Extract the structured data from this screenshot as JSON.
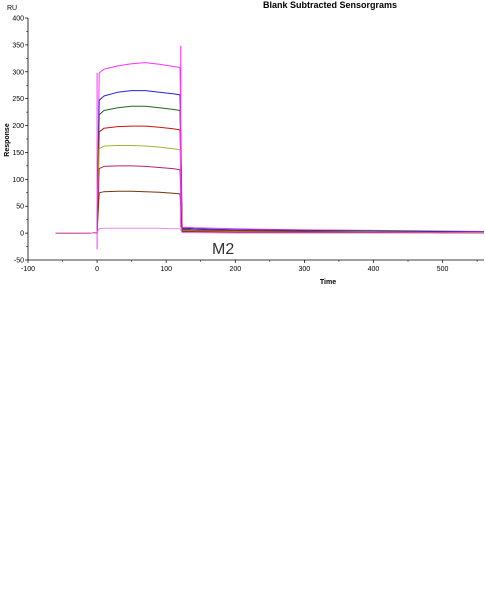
{
  "chart_data": {
    "type": "line",
    "title": "Blank Subtracted Sensorgrams",
    "xlabel": "Time",
    "ylabel": "Response",
    "unit_label": "RU",
    "annotation": "M2",
    "xlim": [
      -100,
      560
    ],
    "ylim": [
      -50,
      400
    ],
    "xticks": [
      -100,
      0,
      100,
      200,
      300,
      400,
      500
    ],
    "yticks": [
      -50,
      0,
      50,
      100,
      150,
      200,
      250,
      300,
      350,
      400
    ],
    "grid": false,
    "x": [
      -60,
      -10,
      0,
      3,
      10,
      30,
      50,
      70,
      90,
      110,
      120,
      123,
      128,
      140,
      200,
      300,
      400,
      500,
      560
    ],
    "series": [
      {
        "color": "#ff33ff",
        "values": [
          0,
          0,
          1,
          298,
          305,
          311,
          315,
          317,
          314,
          310,
          308,
          10,
          11,
          10,
          8,
          6,
          5,
          4,
          3
        ]
      },
      {
        "color": "#2222dd",
        "values": [
          0,
          0,
          1,
          247,
          255,
          262,
          265,
          265,
          262,
          259,
          257,
          8,
          9,
          8,
          6,
          5,
          4,
          3,
          2
        ]
      },
      {
        "color": "#226622",
        "values": [
          0,
          0,
          1,
          220,
          228,
          233,
          236,
          236,
          233,
          230,
          228,
          6,
          7,
          6,
          5,
          4,
          3,
          2,
          1
        ]
      },
      {
        "color": "#cc1111",
        "values": [
          0,
          0,
          1,
          188,
          195,
          198,
          199,
          199,
          197,
          194,
          192,
          5,
          6,
          5,
          4,
          3,
          2,
          1,
          1
        ]
      },
      {
        "color": "#99bb33",
        "values": [
          0,
          0,
          1,
          157,
          162,
          163,
          163,
          162,
          160,
          157,
          155,
          4,
          5,
          4,
          3,
          2,
          2,
          1,
          1
        ]
      },
      {
        "color": "#bb2266",
        "values": [
          0,
          0,
          1,
          120,
          124,
          125,
          125,
          124,
          122,
          120,
          118,
          3,
          4,
          3,
          2,
          2,
          1,
          1,
          0
        ]
      },
      {
        "color": "#773311",
        "values": [
          0,
          0,
          1,
          75,
          77,
          78,
          78,
          77,
          76,
          74,
          73,
          2,
          2,
          2,
          1,
          1,
          1,
          0,
          0
        ]
      },
      {
        "color": "#ee88ee",
        "values": [
          0,
          0,
          1,
          8,
          9,
          9,
          9,
          9,
          9,
          8,
          8,
          1,
          1,
          1,
          0,
          0,
          0,
          0,
          0
        ]
      }
    ]
  }
}
